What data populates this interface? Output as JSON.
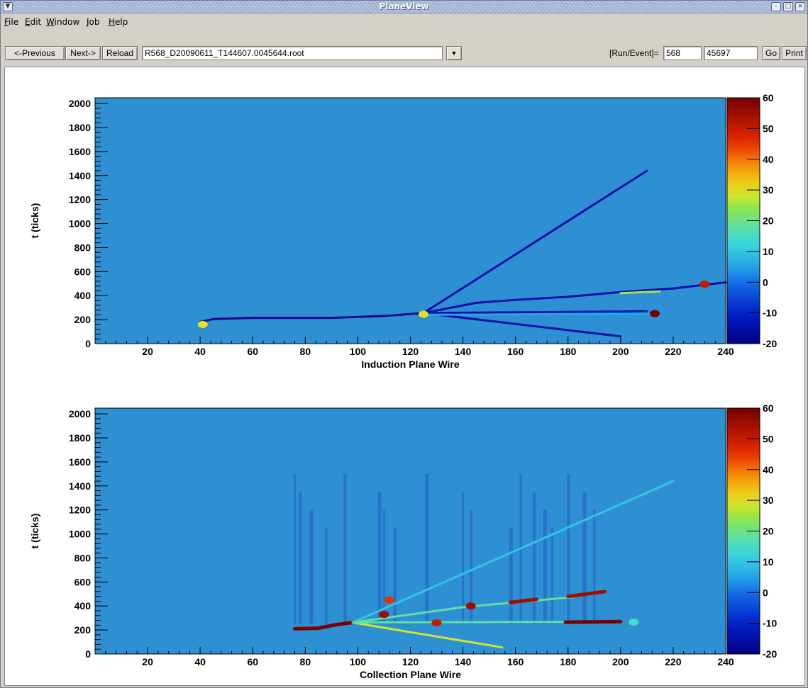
{
  "window": {
    "title": "PlaneView"
  },
  "menu": [
    "File",
    "Edit",
    "Window",
    "Job",
    "Help"
  ],
  "toolbar": {
    "previous_label": "<-Previous",
    "next_label": "Next->",
    "reload_label": "Reload",
    "file_value": "R568_D20090611_T144607.0045644.root",
    "run_event_label": "[Run/Event]=",
    "run_value": "568",
    "event_value": "45697",
    "go_label": "Go",
    "print_label": "Print"
  },
  "colors": {
    "background": "#2f8fd3",
    "track": "#123c97"
  },
  "chart_data": [
    {
      "type": "heatmap",
      "title": "",
      "xlabel": "Induction Plane Wire",
      "ylabel": "t (ticks)",
      "xlim": [
        0,
        240
      ],
      "ylim": [
        0,
        2048
      ],
      "x_ticks": [
        20,
        40,
        60,
        80,
        100,
        120,
        140,
        160,
        180,
        200,
        220,
        240
      ],
      "y_ticks": [
        0,
        200,
        400,
        600,
        800,
        1000,
        1200,
        1400,
        1600,
        1800,
        2000
      ],
      "colorbar": {
        "min": -20,
        "max": 60,
        "ticks": [
          -20,
          -10,
          0,
          10,
          20,
          30,
          40,
          50,
          60
        ]
      },
      "tracks": [
        {
          "points": [
            [
              40,
              180
            ],
            [
              45,
              205
            ],
            [
              60,
              215
            ],
            [
              90,
              215
            ],
            [
              110,
              230
            ],
            [
              125,
              255
            ]
          ],
          "value": -18
        },
        {
          "points": [
            [
              125,
              255
            ],
            [
              210,
              1440
            ]
          ],
          "value": -15
        },
        {
          "points": [
            [
              125,
              255
            ],
            [
              200,
              60
            ]
          ],
          "value": -15
        },
        {
          "points": [
            [
              125,
              255
            ],
            [
              145,
              340
            ],
            [
              160,
              365
            ],
            [
              180,
              390
            ],
            [
              200,
              430
            ],
            [
              220,
              460
            ],
            [
              240,
              510
            ]
          ],
          "value": -15
        },
        {
          "points": [
            [
              125,
              255
            ],
            [
              210,
              270
            ]
          ],
          "value": -14
        },
        {
          "points": [
            [
              200,
              420
            ],
            [
              215,
              435
            ]
          ],
          "value": 25
        },
        {
          "points": [
            [
              125,
              240
            ],
            [
              212,
              248
            ]
          ],
          "value": 5
        }
      ],
      "hotspots": [
        {
          "x": 213,
          "y": 250,
          "value": 60
        },
        {
          "x": 41,
          "y": 160,
          "value": 30
        },
        {
          "x": 232,
          "y": 495,
          "value": 50
        },
        {
          "x": 125,
          "y": 245,
          "value": 30
        }
      ]
    },
    {
      "type": "heatmap",
      "title": "",
      "xlabel": "Collection Plane Wire",
      "ylabel": "t (ticks)",
      "xlim": [
        0,
        240
      ],
      "ylim": [
        0,
        2048
      ],
      "x_ticks": [
        20,
        40,
        60,
        80,
        100,
        120,
        140,
        160,
        180,
        200,
        220,
        240
      ],
      "y_ticks": [
        0,
        200,
        400,
        600,
        800,
        1000,
        1200,
        1400,
        1600,
        1800,
        2000
      ],
      "colorbar": {
        "min": -20,
        "max": 60,
        "ticks": [
          -20,
          -10,
          0,
          10,
          20,
          30,
          40,
          50,
          60
        ]
      },
      "tracks": [
        {
          "points": [
            [
              76,
              210
            ],
            [
              85,
              215
            ],
            [
              92,
              245
            ],
            [
              98,
              262
            ]
          ],
          "value": 60
        },
        {
          "points": [
            [
              98,
              262
            ],
            [
              220,
              1440
            ]
          ],
          "value": 10
        },
        {
          "points": [
            [
              98,
              262
            ],
            [
              155,
              55
            ]
          ],
          "value": 28
        },
        {
          "points": [
            [
              98,
              262
            ],
            [
              200,
              270
            ]
          ],
          "value": 18
        },
        {
          "points": [
            [
              98,
              262
            ],
            [
              140,
              390
            ],
            [
              160,
              430
            ],
            [
              180,
              470
            ],
            [
              194,
              530
            ]
          ],
          "value": 18
        },
        {
          "points": [
            [
              179,
              265
            ],
            [
              200,
              270
            ]
          ],
          "value": 60
        },
        {
          "points": [
            [
              158,
              430
            ],
            [
              168,
              455
            ]
          ],
          "value": 55
        },
        {
          "points": [
            [
              180,
              480
            ],
            [
              194,
              520
            ]
          ],
          "value": 55
        }
      ],
      "vertical_streaks": [
        76,
        78,
        82,
        88,
        95,
        108,
        110,
        114,
        126,
        140,
        143,
        158,
        162,
        167,
        171,
        174,
        180,
        186,
        190
      ],
      "hotspots": [
        {
          "x": 110,
          "y": 330,
          "value": 55
        },
        {
          "x": 130,
          "y": 260,
          "value": 50
        },
        {
          "x": 143,
          "y": 400,
          "value": 55
        },
        {
          "x": 112,
          "y": 450,
          "value": 45
        },
        {
          "x": 205,
          "y": 265,
          "value": 15
        }
      ]
    }
  ]
}
